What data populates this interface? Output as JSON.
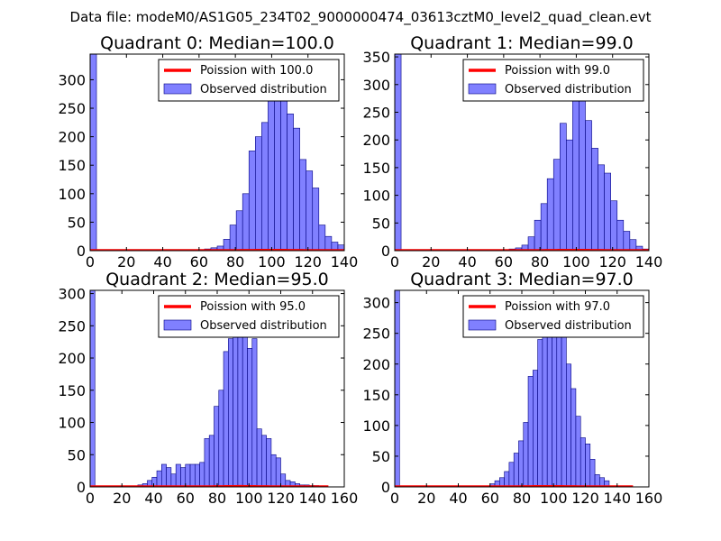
{
  "suptitle": "Data file: modeM0/AS1G05_234T02_9000000474_03613cztM0_level2_quad_clean.evt",
  "colors": {
    "bar_fill": "#8080ff",
    "bar_edge": "#000080",
    "curve": "#ff0000",
    "axis": "#000000"
  },
  "chart_data": [
    {
      "type": "bar",
      "title": "Quadrant 0: Median=100.0",
      "xlim": [
        0,
        140
      ],
      "ylim": [
        0,
        345
      ],
      "xticks": [
        0,
        20,
        40,
        60,
        80,
        100,
        120,
        140
      ],
      "yticks": [
        0,
        50,
        100,
        150,
        200,
        250,
        300
      ],
      "bin_width": 3.5,
      "bar_lefts": [
        0,
        63,
        66.5,
        70,
        73.5,
        77,
        80.5,
        84,
        87.5,
        91,
        94.5,
        98,
        101.5,
        105,
        108.5,
        112,
        115.5,
        119,
        122.5,
        126,
        129.5,
        133,
        136.5
      ],
      "bar_values": [
        345,
        3,
        5,
        8,
        20,
        45,
        70,
        100,
        175,
        200,
        225,
        270,
        300,
        280,
        240,
        215,
        160,
        140,
        110,
        45,
        25,
        15,
        10
      ],
      "poisson": {
        "lambda": 100.0,
        "scale": 3.5
      },
      "legend": [
        "Poission with 100.0",
        "Observed distribution"
      ]
    },
    {
      "type": "bar",
      "title": "Quadrant 1: Median=99.0",
      "xlim": [
        0,
        140
      ],
      "ylim": [
        0,
        355
      ],
      "xticks": [
        0,
        20,
        40,
        60,
        80,
        100,
        120,
        140
      ],
      "yticks": [
        0,
        50,
        100,
        150,
        200,
        250,
        300,
        350
      ],
      "bin_width": 3.5,
      "bar_lefts": [
        0,
        63,
        66.5,
        70,
        73.5,
        77,
        80.5,
        84,
        87.5,
        91,
        94.5,
        98,
        101.5,
        105,
        108.5,
        112,
        115.5,
        119,
        122.5,
        126,
        129.5,
        133,
        136.5
      ],
      "bar_values": [
        355,
        3,
        5,
        10,
        25,
        55,
        85,
        130,
        165,
        230,
        200,
        300,
        270,
        235,
        185,
        155,
        140,
        90,
        55,
        35,
        20,
        8,
        3
      ],
      "poisson": {
        "lambda": 99.0,
        "scale": 3.5
      },
      "legend": [
        "Poission with 99.0",
        "Observed distribution"
      ]
    },
    {
      "type": "bar",
      "title": "Quadrant 2: Median=95.0",
      "xlim": [
        0,
        160
      ],
      "ylim": [
        0,
        305
      ],
      "xticks": [
        0,
        20,
        40,
        60,
        80,
        100,
        120,
        140,
        160
      ],
      "yticks": [
        0,
        50,
        100,
        150,
        200,
        250,
        300
      ],
      "bin_width": 3,
      "bar_lefts": [
        0,
        30,
        33,
        36,
        39,
        42,
        45,
        48,
        51,
        54,
        57,
        60,
        63,
        66,
        69,
        72,
        75,
        78,
        81,
        84,
        87,
        90,
        93,
        96,
        99,
        102,
        105,
        108,
        111,
        114,
        117,
        120,
        123,
        126,
        129,
        132,
        135,
        138,
        141
      ],
      "bar_values": [
        305,
        3,
        5,
        10,
        15,
        25,
        35,
        30,
        20,
        35,
        30,
        35,
        35,
        35,
        38,
        75,
        80,
        125,
        150,
        210,
        230,
        240,
        245,
        260,
        215,
        230,
        90,
        80,
        75,
        50,
        45,
        20,
        10,
        8,
        5,
        3,
        3,
        2,
        2
      ],
      "poisson": {
        "lambda": 95.0,
        "scale": 3.0
      },
      "legend": [
        "Poission with 95.0",
        "Observed distribution"
      ]
    },
    {
      "type": "bar",
      "title": "Quadrant 3: Median=97.0",
      "xlim": [
        0,
        160
      ],
      "ylim": [
        0,
        320
      ],
      "xticks": [
        0,
        20,
        40,
        60,
        80,
        100,
        120,
        140,
        160
      ],
      "yticks": [
        0,
        50,
        100,
        150,
        200,
        250,
        300
      ],
      "bin_width": 3,
      "bar_lefts": [
        0,
        60,
        63,
        66,
        69,
        72,
        75,
        78,
        81,
        84,
        87,
        90,
        93,
        96,
        99,
        102,
        105,
        108,
        111,
        114,
        117,
        120,
        123,
        126,
        129,
        132
      ],
      "bar_values": [
        320,
        5,
        10,
        15,
        25,
        40,
        55,
        75,
        105,
        180,
        190,
        240,
        260,
        300,
        305,
        270,
        245,
        200,
        160,
        115,
        80,
        70,
        45,
        20,
        15,
        10
      ],
      "poisson": {
        "lambda": 97.0,
        "scale": 3.0
      },
      "legend": [
        "Poission with 97.0",
        "Observed distribution"
      ]
    }
  ]
}
